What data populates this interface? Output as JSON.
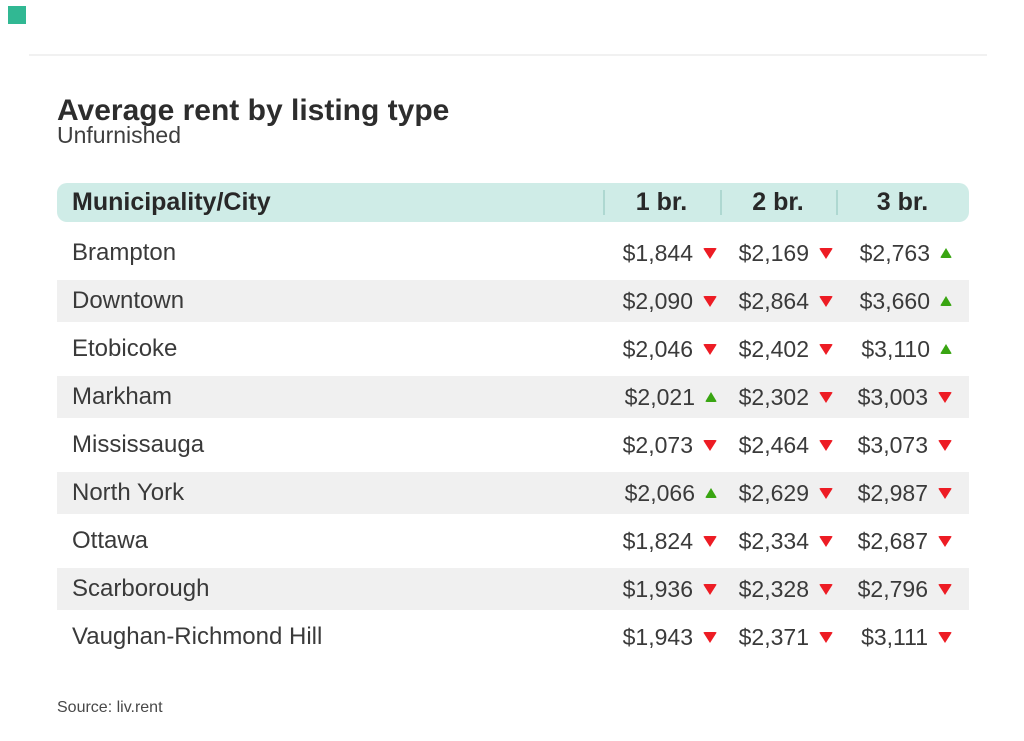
{
  "page": {
    "title": "Average rent by listing type",
    "subtitle": "Unfurnished",
    "source": "Source: liv.rent"
  },
  "icons": {
    "up": "▲",
    "down": "▼"
  },
  "colors": {
    "brand_square": "#31b893",
    "header_bg": "#cfece7",
    "divider": "#aed8d1",
    "stripe_bg": "#f0f0f0",
    "up": "#39a512",
    "down": "#ed1c24"
  },
  "chart_data": {
    "type": "table",
    "title": "Average rent by listing type",
    "subtitle": "Unfurnished",
    "source": "Source: liv.rent",
    "currency": "$",
    "columns": [
      "Municipality/City",
      "1 br.",
      "2 br.",
      "3 br."
    ],
    "rows": [
      {
        "municipality": "Brampton",
        "rents": [
          1844,
          2169,
          2763
        ],
        "trends": [
          "down",
          "down",
          "up"
        ]
      },
      {
        "municipality": "Downtown",
        "rents": [
          2090,
          2864,
          3660
        ],
        "trends": [
          "down",
          "down",
          "up"
        ]
      },
      {
        "municipality": "Etobicoke",
        "rents": [
          2046,
          2402,
          3110
        ],
        "trends": [
          "down",
          "down",
          "up"
        ]
      },
      {
        "municipality": "Markham",
        "rents": [
          2021,
          2302,
          3003
        ],
        "trends": [
          "up",
          "down",
          "down"
        ]
      },
      {
        "municipality": "Mississauga",
        "rents": [
          2073,
          2464,
          3073
        ],
        "trends": [
          "down",
          "down",
          "down"
        ]
      },
      {
        "municipality": "North York",
        "rents": [
          2066,
          2629,
          2987
        ],
        "trends": [
          "up",
          "down",
          "down"
        ]
      },
      {
        "municipality": "Ottawa",
        "rents": [
          1824,
          2334,
          2687
        ],
        "trends": [
          "down",
          "down",
          "down"
        ]
      },
      {
        "municipality": "Scarborough",
        "rents": [
          1936,
          2328,
          2796
        ],
        "trends": [
          "down",
          "down",
          "down"
        ]
      },
      {
        "municipality": "Vaughan-Richmond Hill",
        "rents": [
          1943,
          2371,
          3111
        ],
        "trends": [
          "down",
          "down",
          "down"
        ]
      }
    ]
  }
}
